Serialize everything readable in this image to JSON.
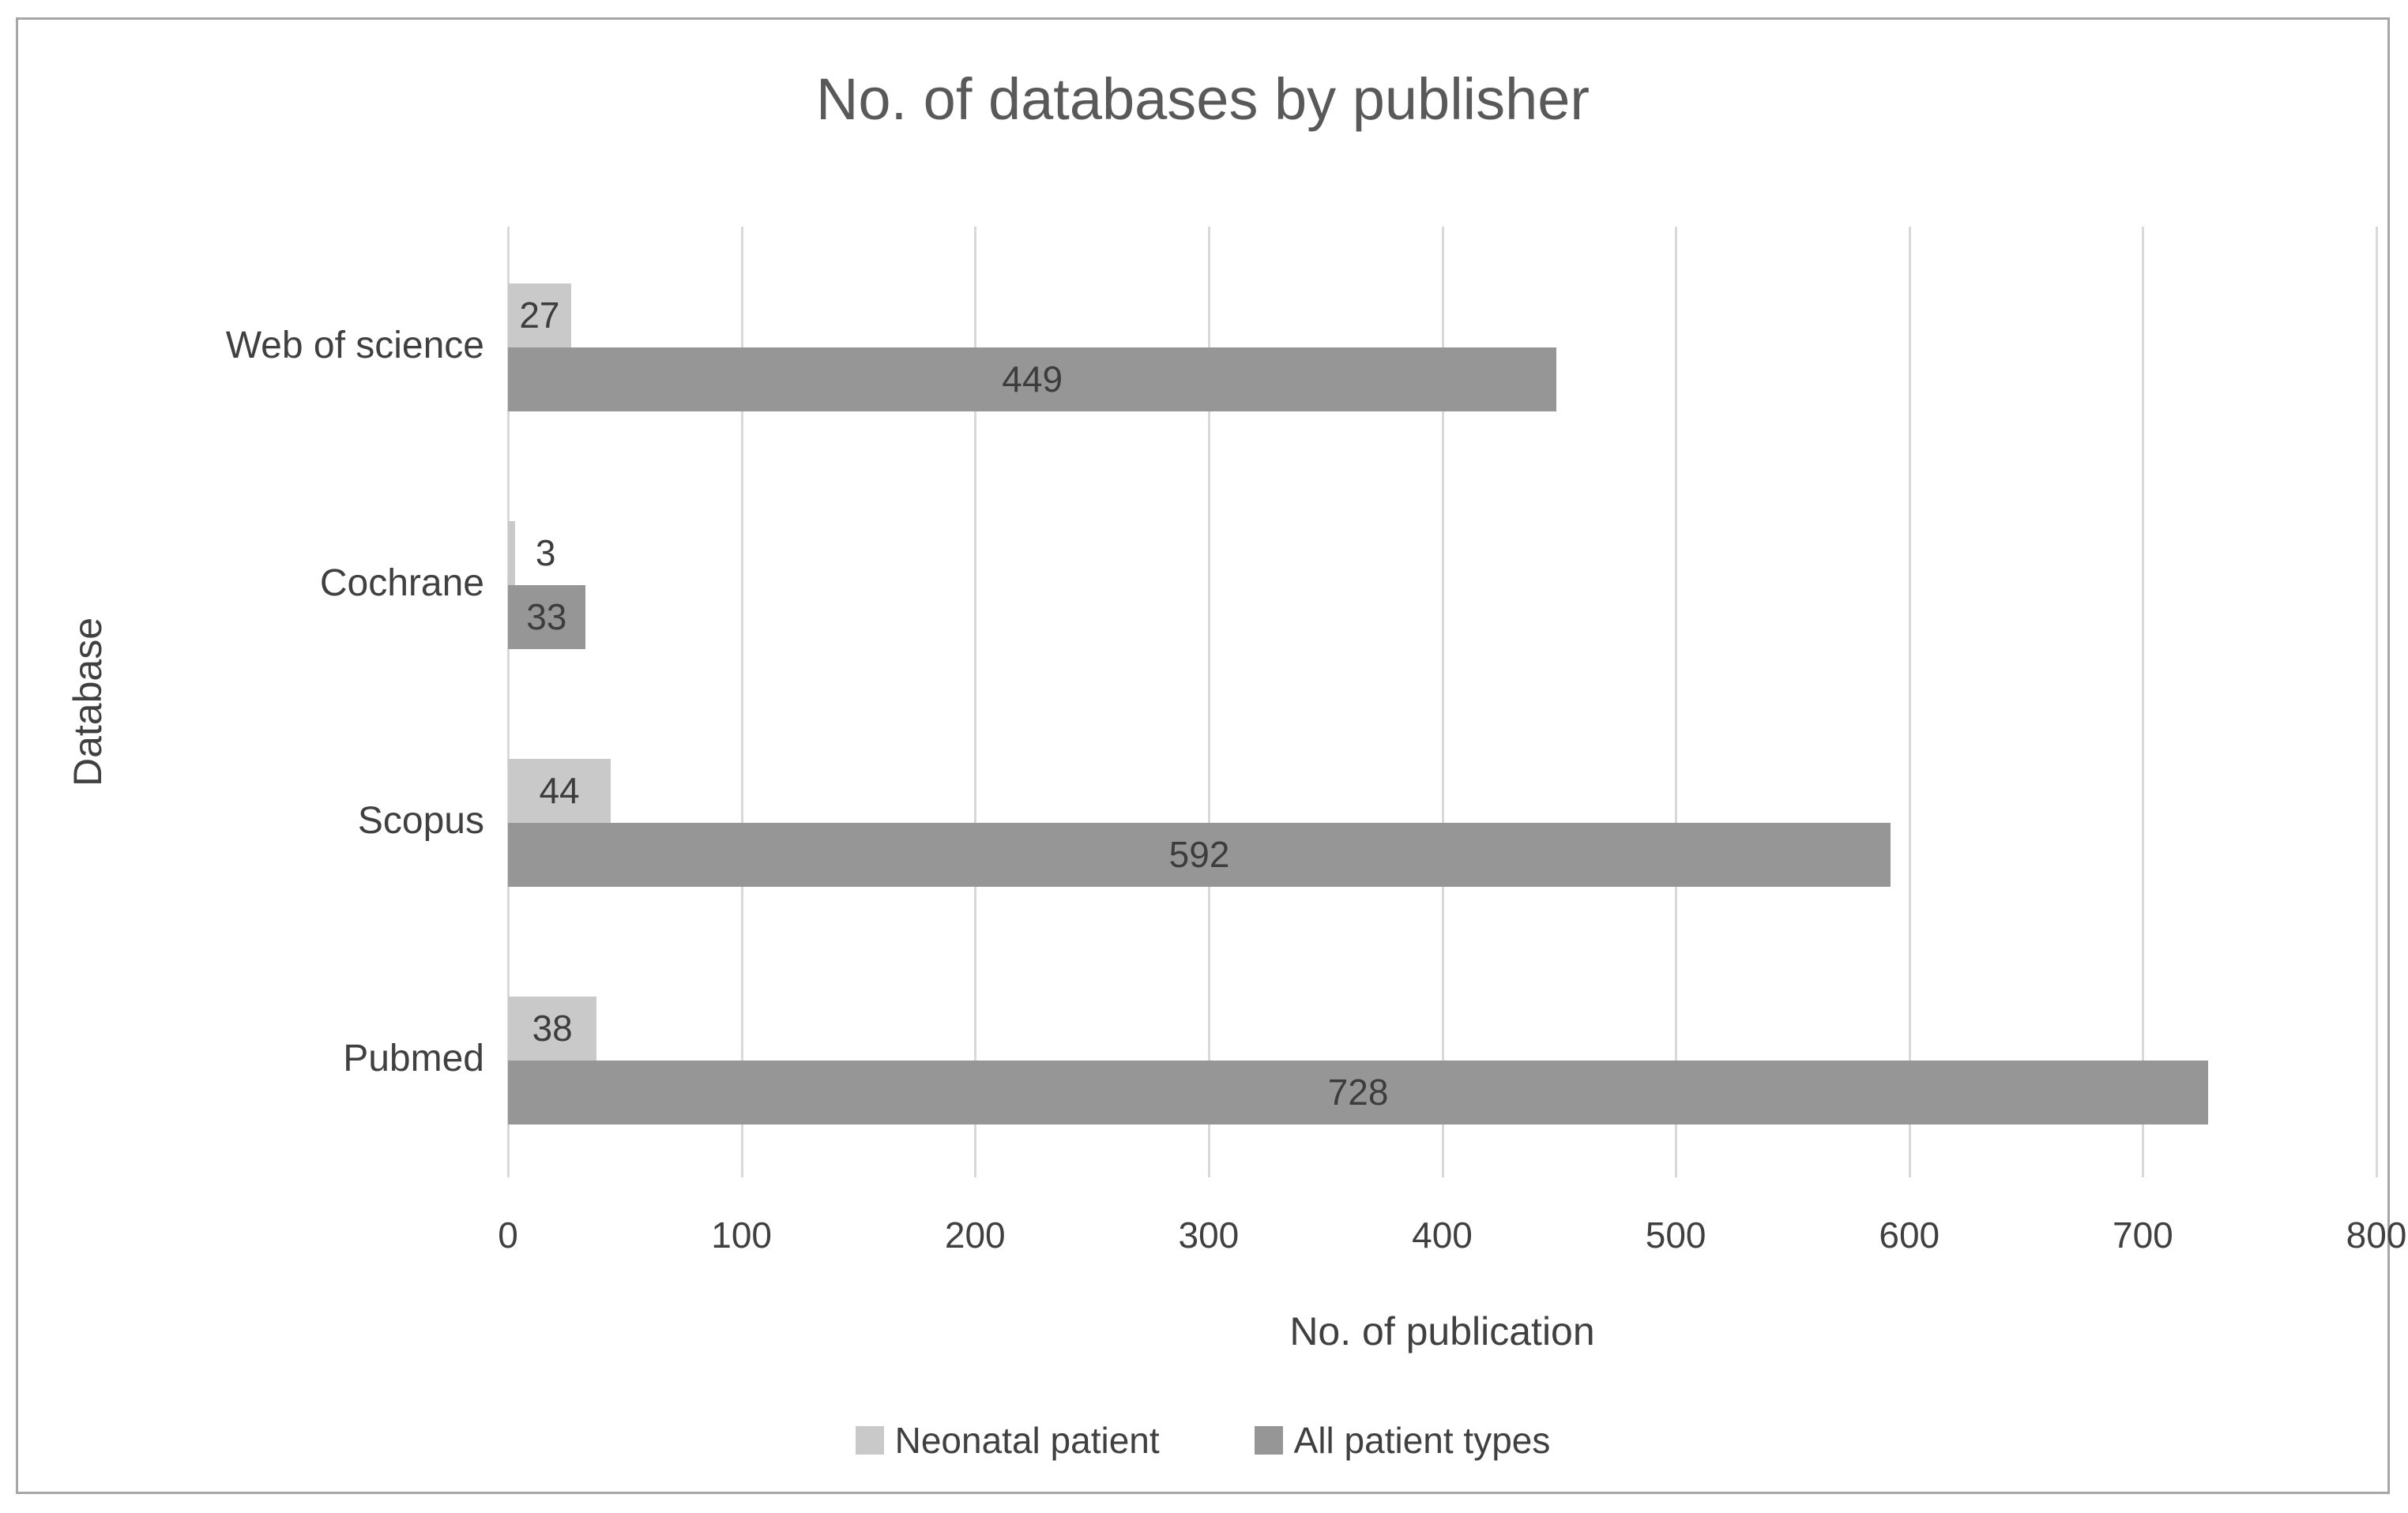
{
  "title": "No. of databases by publisher",
  "chart_data": {
    "type": "bar",
    "orientation": "horizontal",
    "title": "No. of databases by publisher",
    "categories": [
      "Web of science",
      "Cochrane",
      "Scopus",
      "Pubmed"
    ],
    "series": [
      {
        "name": "Neonatal patient",
        "color": "#c9c9c9",
        "values": [
          27,
          3,
          44,
          38
        ]
      },
      {
        "name": "All patient types",
        "color": "#969696",
        "values": [
          449,
          33,
          592,
          728
        ]
      }
    ],
    "xlabel": "No. of publication",
    "ylabel": "Database",
    "xlim": [
      0,
      800
    ],
    "xticks": [
      0,
      100,
      200,
      300,
      400,
      500,
      600,
      700,
      800
    ],
    "grid": true,
    "legend_position": "bottom"
  },
  "colors": {
    "frame_border": "#a6a6a6",
    "gridline": "#d9d9d9",
    "title_text": "#595959",
    "axis_text": "#404040",
    "label_text": "#3d3d3d"
  }
}
